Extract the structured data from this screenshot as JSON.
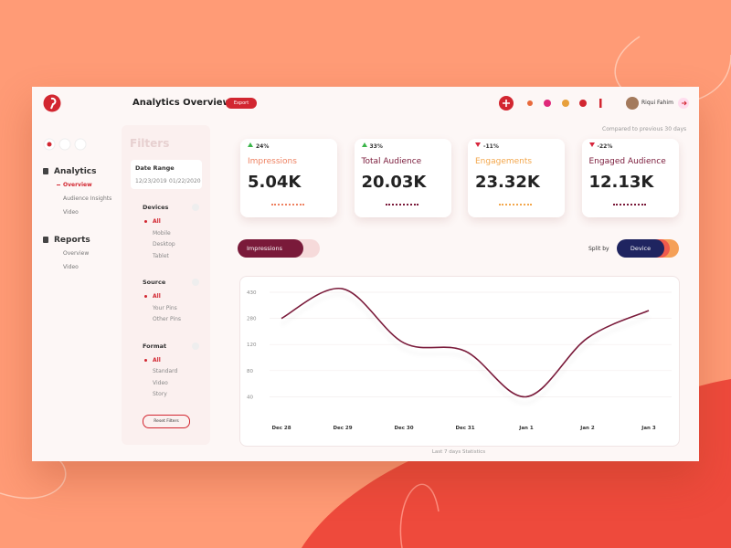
{
  "header": {
    "title": "Analytics Overview",
    "export": "Export",
    "user": "Riqui Fahim"
  },
  "sidebar": {
    "sections": [
      {
        "title": "Analytics",
        "items": [
          "Overview",
          "Audience Insights",
          "Video"
        ]
      },
      {
        "title": "Reports",
        "items": [
          "Overview",
          "Video"
        ]
      }
    ]
  },
  "filters": {
    "title": "Filters",
    "date_range": {
      "label": "Date Range",
      "start": "12/23/2019",
      "end": "01/22/2020"
    },
    "groups": [
      {
        "title": "Devices",
        "options": [
          "All",
          "Mobile",
          "Desktop",
          "Tablet"
        ]
      },
      {
        "title": "Source",
        "options": [
          "All",
          "Your Pins",
          "Other Pins"
        ]
      },
      {
        "title": "Format",
        "options": [
          "All",
          "Standard",
          "Video",
          "Story"
        ]
      }
    ],
    "reset": "Reset Filters"
  },
  "comparison": "Compared to previous 30 days",
  "stats": [
    {
      "change": "24%",
      "label": "Impressions",
      "value": "5.04K"
    },
    {
      "change": "33%",
      "label": "Total Audience",
      "value": "20.03K"
    },
    {
      "change": "-11%",
      "label": "Engagements",
      "value": "23.32K"
    },
    {
      "change": "-22%",
      "label": "Engaged Audience",
      "value": "12.13K"
    }
  ],
  "metric_select": "Impressions",
  "split_label": "Split by",
  "split_value": "Device",
  "chart_data": {
    "type": "line",
    "color": "#7a1a3a",
    "grid": true,
    "categories": [
      "Dec 28",
      "Dec 29",
      "Dec 30",
      "Dec 31",
      "Jan 1",
      "Jan 2",
      "Jan 3"
    ],
    "values": [
      280,
      450,
      130,
      110,
      40,
      160,
      325
    ],
    "yticks": [
      430,
      280,
      120,
      80,
      40
    ],
    "caption": "Last 7 days Statistics"
  }
}
